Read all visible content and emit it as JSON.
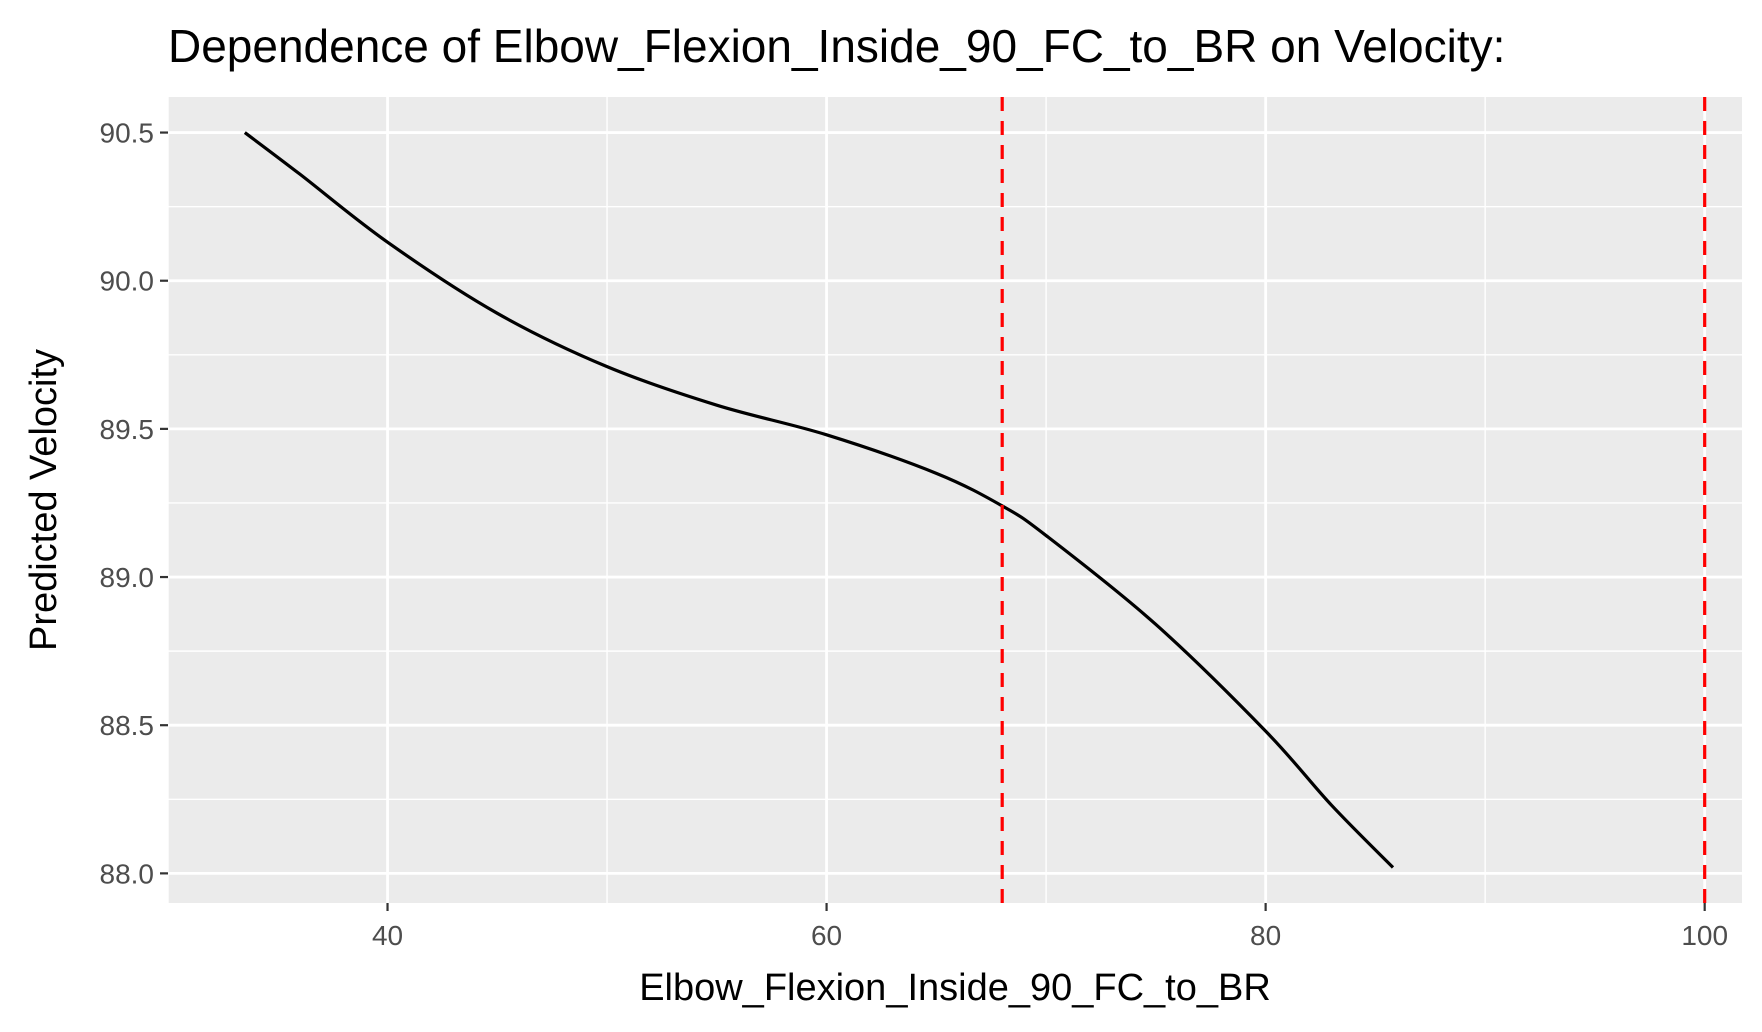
{
  "chart_data": {
    "type": "line",
    "title": "Dependence of Elbow_Flexion_Inside_90_FC_to_BR on Velocity:",
    "xlabel": "Elbow_Flexion_Inside_90_FC_to_BR",
    "ylabel": "Predicted Velocity",
    "xlim": [
      30,
      101.7
    ],
    "ylim": [
      87.9,
      90.62
    ],
    "x_ticks": [
      40,
      60,
      80,
      100
    ],
    "x_tick_labels": [
      "40",
      "60",
      "80",
      "100"
    ],
    "y_ticks": [
      88.0,
      88.5,
      89.0,
      89.5,
      90.0,
      90.5
    ],
    "y_tick_labels": [
      "88.0",
      "88.5",
      "89.0",
      "89.5",
      "90.0",
      "90.5"
    ],
    "grid": true,
    "series": [
      {
        "color": "#000000",
        "x": [
          33.5,
          36,
          40,
          45,
          50,
          55,
          60,
          65,
          68,
          70,
          75,
          80,
          83,
          85.8
        ],
        "y": [
          90.5,
          90.36,
          90.13,
          89.89,
          89.71,
          89.58,
          89.48,
          89.35,
          89.24,
          89.14,
          88.84,
          88.48,
          88.23,
          88.02
        ]
      }
    ],
    "reference_lines": [
      {
        "orientation": "vertical",
        "x": 68,
        "color": "#ff0000",
        "style": "dashed"
      },
      {
        "orientation": "vertical",
        "x": 100,
        "color": "#ff0000",
        "style": "dashed"
      }
    ],
    "colors": {
      "panel": "#ebebeb",
      "grid": "#ffffff",
      "tick": "#333333"
    }
  }
}
